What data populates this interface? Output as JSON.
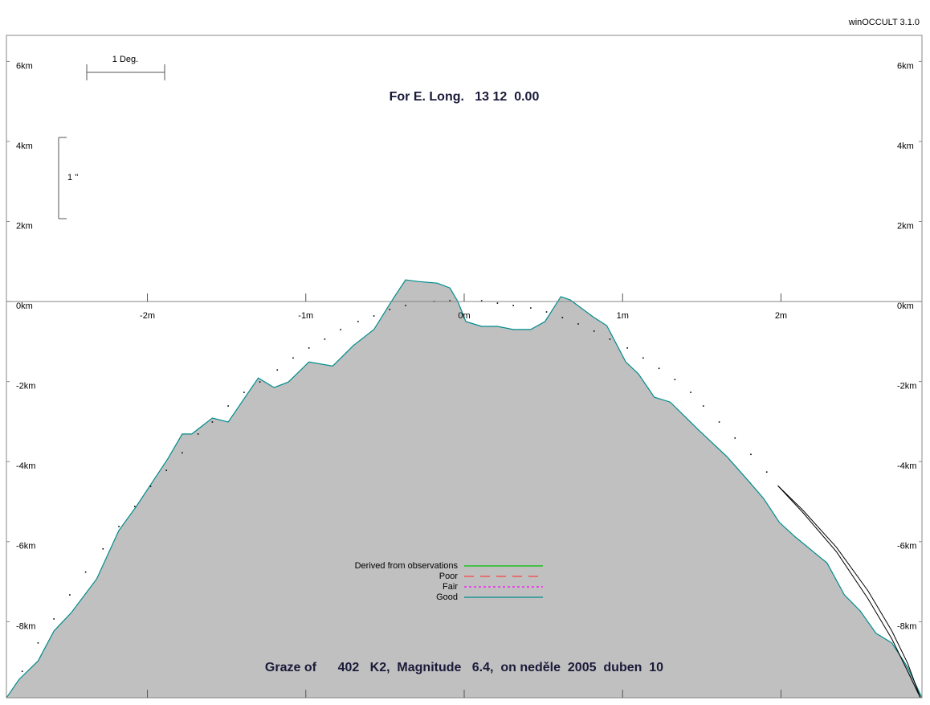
{
  "app_label": "winOCCULT 3.1.0",
  "chart_data": {
    "type": "area",
    "title": "For E. Long.   13 12  0.00",
    "subtitle": "Graze of      402   K2,  Magnitude   6.4,  on neděle  2005  duben  10",
    "scale_labels": {
      "degree": "1 Deg.",
      "arcsec": "1 ''"
    },
    "xlim": [
      -2.89,
      2.89
    ],
    "ylim": [
      -9.9,
      6.65
    ],
    "xticks": [
      {
        "value": -2,
        "label": "-2m"
      },
      {
        "value": -1,
        "label": "-1m"
      },
      {
        "value": 0,
        "label": "0m"
      },
      {
        "value": 1,
        "label": "1m"
      },
      {
        "value": 2,
        "label": "2m"
      }
    ],
    "yticks": [
      {
        "value": 6,
        "label": "6km"
      },
      {
        "value": 4,
        "label": "4km"
      },
      {
        "value": 2,
        "label": "2km"
      },
      {
        "value": 0,
        "label": "0km"
      },
      {
        "value": -2,
        "label": "-2km"
      },
      {
        "value": -4,
        "label": "-4km"
      },
      {
        "value": -6,
        "label": "-6km"
      },
      {
        "value": -8,
        "label": "-8km"
      }
    ],
    "series": [
      {
        "name": "Good",
        "type": "area",
        "color": "#008b8b",
        "fill": "#c0c0c0",
        "dash": "solid",
        "x": [
          -2.89,
          -2.81,
          -2.69,
          -2.59,
          -2.48,
          -2.32,
          -2.18,
          -2.07,
          -1.97,
          -1.87,
          -1.78,
          -1.72,
          -1.59,
          -1.49,
          -1.3,
          -1.2,
          -1.11,
          -0.98,
          -0.83,
          -0.7,
          -0.57,
          -0.45,
          -0.37,
          -0.29,
          -0.17,
          -0.09,
          -0.04,
          0.01,
          0.11,
          0.21,
          0.31,
          0.42,
          0.51,
          0.61,
          0.67,
          0.82,
          0.9,
          1.02,
          1.1,
          1.2,
          1.3,
          1.48,
          1.66,
          1.79,
          1.89,
          1.99,
          2.09,
          2.24,
          2.29,
          2.4,
          2.5,
          2.6,
          2.7,
          2.8,
          2.89
        ],
        "values": [
          -9.9,
          -9.44,
          -8.98,
          -8.23,
          -7.77,
          -6.93,
          -5.72,
          -5.12,
          -4.52,
          -3.92,
          -3.31,
          -3.31,
          -2.91,
          -3.01,
          -1.91,
          -2.15,
          -2.01,
          -1.51,
          -1.61,
          -1.1,
          -0.7,
          0.06,
          0.54,
          0.5,
          0.46,
          0.34,
          0.0,
          -0.5,
          -0.62,
          -0.62,
          -0.7,
          -0.7,
          -0.5,
          0.12,
          0.04,
          -0.4,
          -0.6,
          -1.51,
          -1.81,
          -2.39,
          -2.51,
          -3.21,
          -3.88,
          -4.46,
          -4.92,
          -5.52,
          -5.88,
          -6.37,
          -6.53,
          -7.33,
          -7.73,
          -8.29,
          -8.53,
          -9.14,
          -9.9
        ]
      },
      {
        "type": "scatter",
        "color": "#000000",
        "x": [
          -2.79,
          -2.69,
          -2.59,
          -2.49,
          -2.39,
          -2.28,
          -2.18,
          -2.08,
          -1.98,
          -1.88,
          -1.78,
          -1.68,
          -1.59,
          -1.49,
          -1.39,
          -1.29,
          -1.18,
          -1.08,
          -0.98,
          -0.88,
          -0.78,
          -0.67,
          -0.57,
          -0.47,
          -0.37,
          -0.19,
          -0.09,
          0.11,
          0.21,
          0.31,
          0.42,
          0.52,
          0.62,
          0.72,
          0.82,
          0.92,
          1.03,
          1.13,
          1.23,
          1.33,
          1.43,
          1.51,
          1.61,
          1.71,
          1.81,
          1.91
        ],
        "values": [
          -9.24,
          -8.53,
          -7.93,
          -7.33,
          -6.76,
          -6.18,
          -5.62,
          -5.12,
          -4.62,
          -4.22,
          -3.78,
          -3.31,
          -3.01,
          -2.61,
          -2.27,
          -2.01,
          -1.71,
          -1.41,
          -1.16,
          -0.94,
          -0.7,
          -0.5,
          -0.36,
          -0.2,
          -0.1,
          0.0,
          0.02,
          0.02,
          -0.04,
          -0.1,
          -0.16,
          -0.26,
          -0.4,
          -0.56,
          -0.74,
          -0.94,
          -1.16,
          -1.41,
          -1.67,
          -1.95,
          -2.27,
          -2.61,
          -3.01,
          -3.41,
          -3.82,
          -4.26
        ]
      },
      {
        "type": "line",
        "color": "#000000",
        "x": [
          1.98,
          2.14,
          2.35,
          2.55,
          2.7,
          2.8,
          2.88
        ],
        "values": [
          -4.6,
          -5.22,
          -6.14,
          -7.23,
          -8.23,
          -9.04,
          -9.9
        ]
      },
      {
        "type": "line",
        "color": "#000000",
        "x": [
          1.98,
          2.14,
          2.35,
          2.55,
          2.7,
          2.8,
          2.88
        ],
        "values": [
          -4.6,
          -5.28,
          -6.25,
          -7.43,
          -8.43,
          -9.24,
          -9.9
        ]
      }
    ],
    "legend_entries": [
      {
        "name": "Derived from observations",
        "color": "#00c000",
        "dash": "solid"
      },
      {
        "name": "Poor",
        "color": "#ff4040",
        "dash": "dashed"
      },
      {
        "name": "Fair",
        "color": "#ff00ff",
        "dash": "dotted"
      }
    ]
  }
}
